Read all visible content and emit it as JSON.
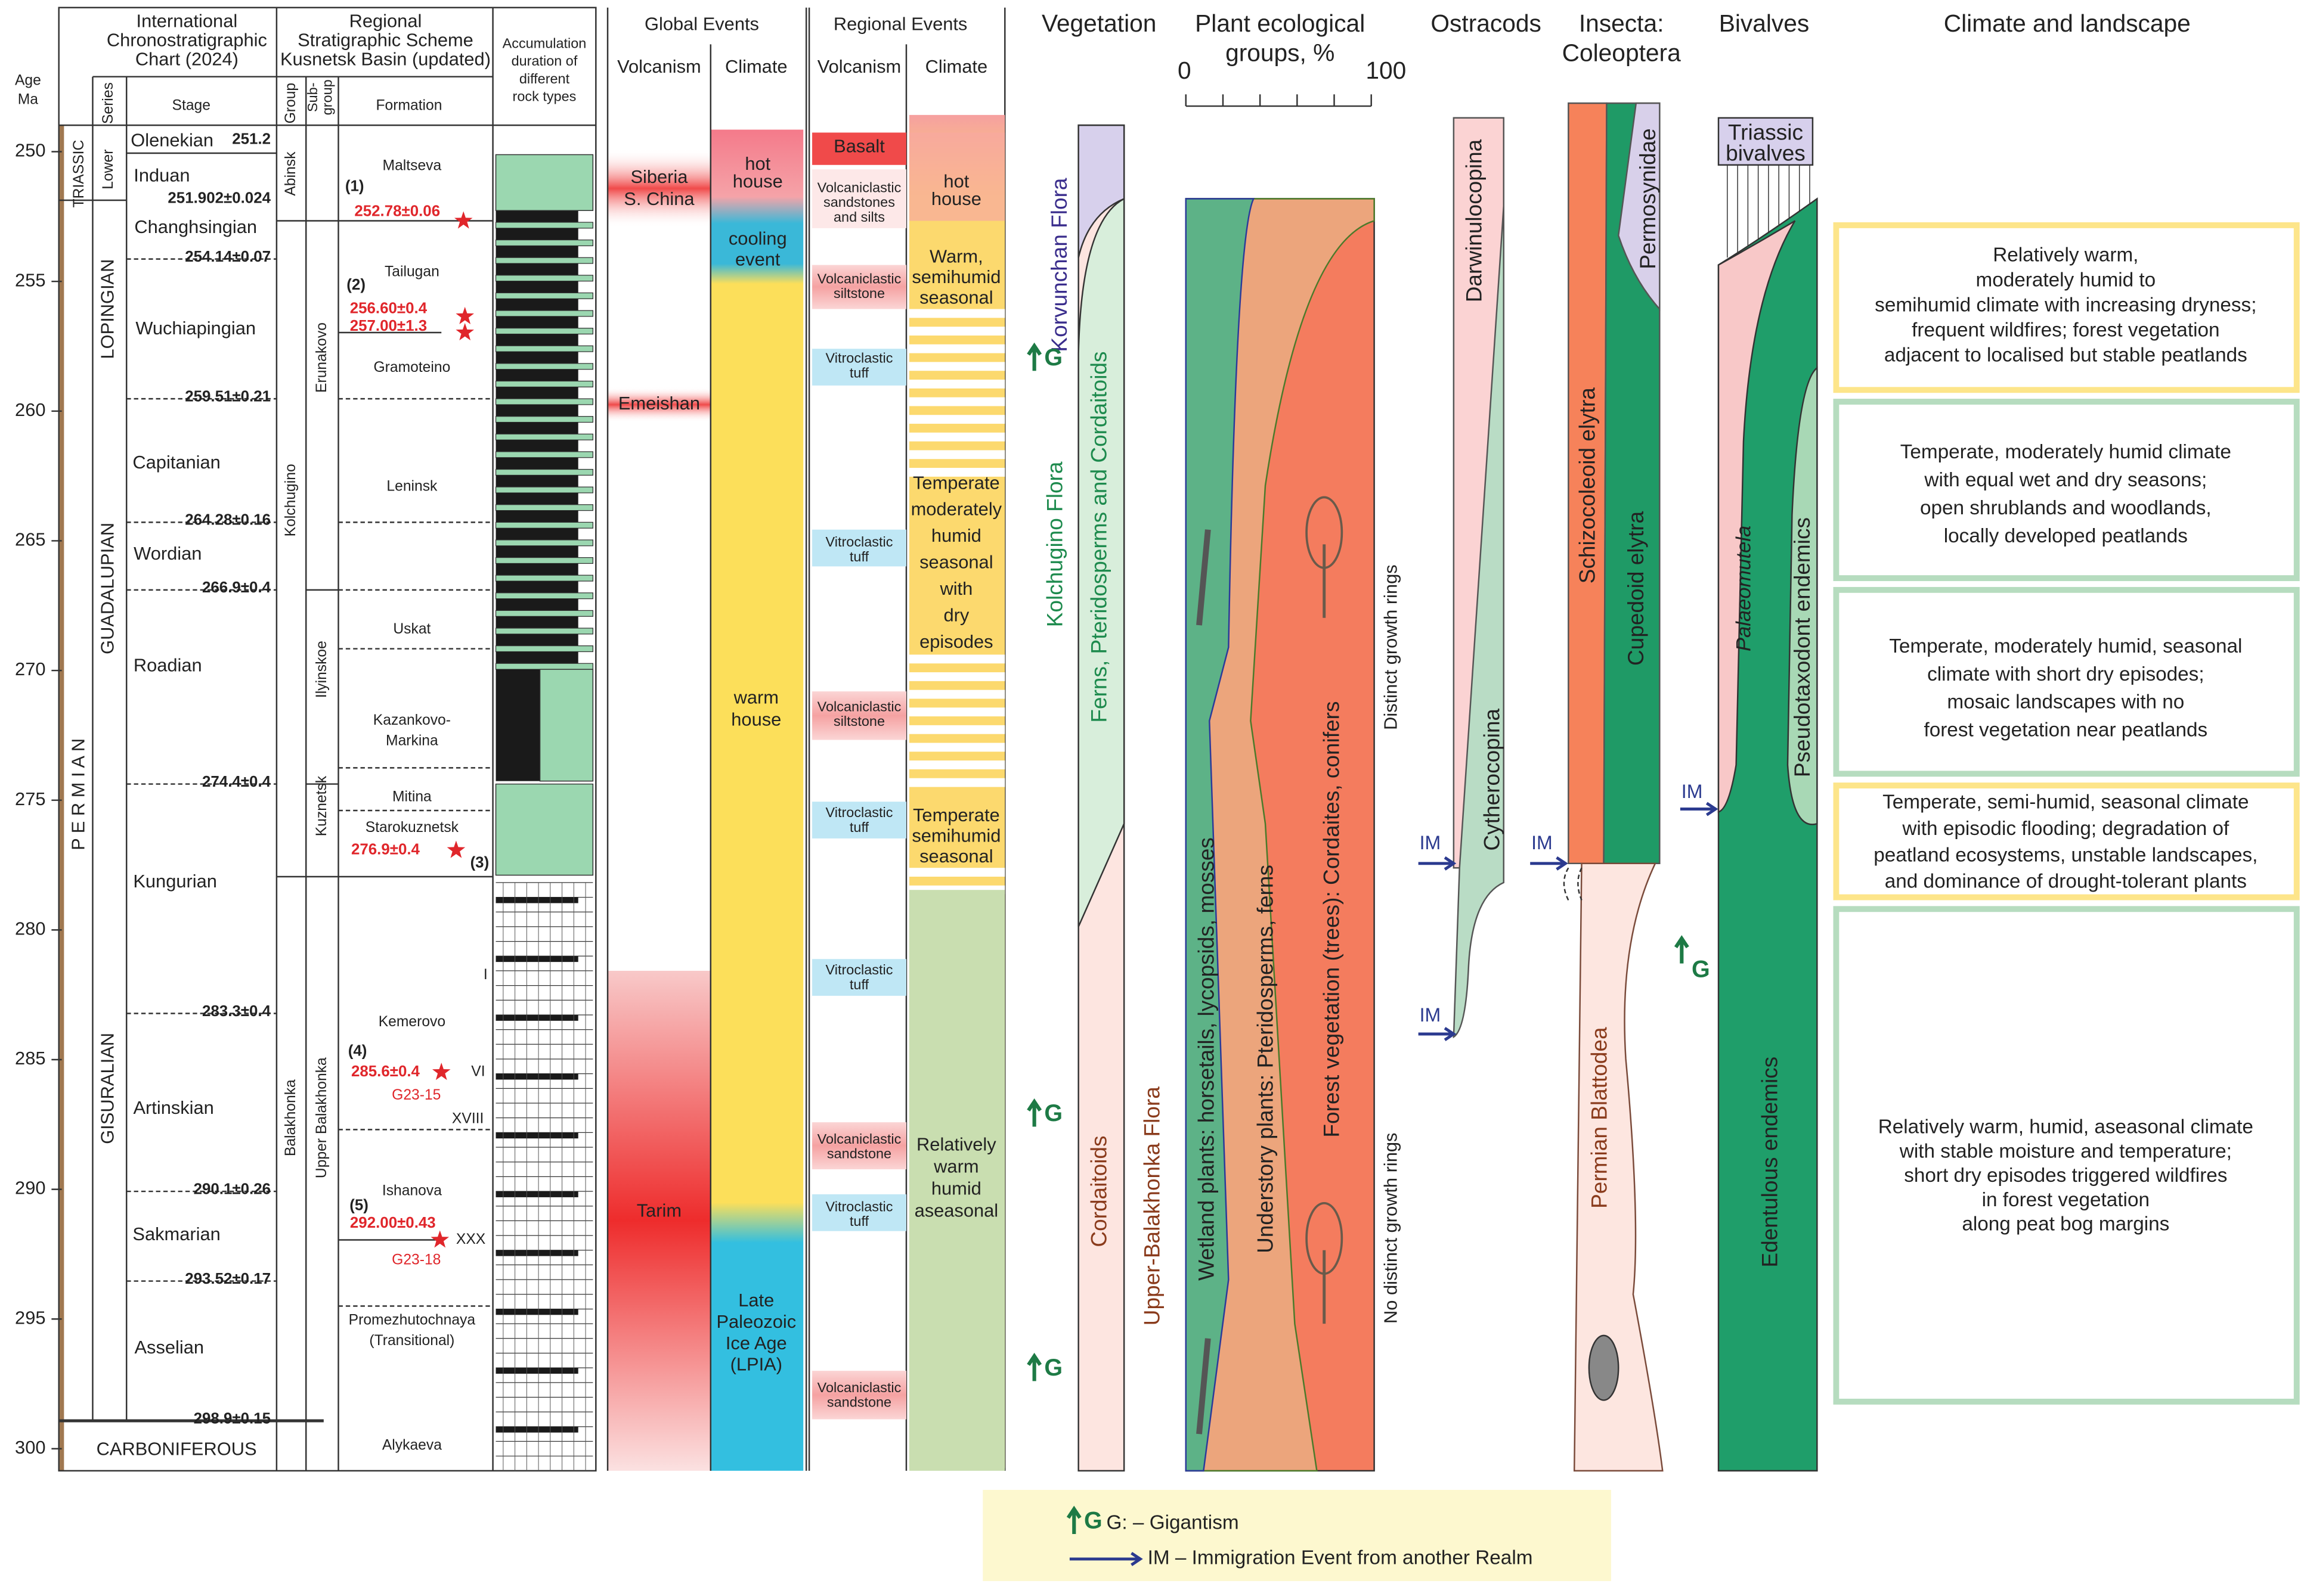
{
  "age_axis": {
    "title": [
      "Age",
      "Ma"
    ],
    "ticks": [
      250,
      255,
      260,
      265,
      270,
      275,
      280,
      285,
      290,
      295,
      300
    ]
  },
  "columns": {
    "ics": [
      "International",
      "Chronostratigraphic",
      "Chart (2024)"
    ],
    "regional": [
      "Regional",
      "Stratigraphic Scheme",
      "Kusnetsk Basin (updated)"
    ],
    "accumulation": [
      "Accumulation",
      "duration of",
      "different",
      "rock types"
    ],
    "series": "Series",
    "stage": "Stage",
    "group": "Group",
    "subgroup": [
      "Sub-",
      "group"
    ],
    "formation": "Formation",
    "global_events": "Global Events",
    "global_volcanism": "Volcanism",
    "global_climate": "Climate",
    "regional_events": "Regional Events",
    "regional_volcanism": "Volcanism",
    "regional_climate": "Climate",
    "vegetation": "Vegetation",
    "plant_groups": [
      "Plant ecological",
      "groups, %"
    ],
    "scale_min": "0",
    "scale_max": "100",
    "ostracods": "Ostracods",
    "insecta": [
      "Insecta:",
      "Coleoptera"
    ],
    "bivalves": "Bivalves",
    "climate_landscape": "Climate and landscape"
  },
  "systems": [
    "TRIASSIC",
    "P E R M I A N",
    "CARBONIFEROUS"
  ],
  "series": [
    "Lower",
    "LOPINGIAN",
    "GUADALUPIAN",
    "GISURALIAN"
  ],
  "stages": [
    "Olenekian",
    "Induan",
    "Changhsingian",
    "Wuchiapingian",
    "Capitanian",
    "Wordian",
    "Roadian",
    "Kungurian",
    "Artinskian",
    "Sakmarian",
    "Asselian"
  ],
  "boundaries": [
    "251.2",
    "251.902±0.024",
    "254.14±0.07",
    "259.51±0.21",
    "264.28±0.16",
    "266.9±0.4",
    "274.4±0.4",
    "283.3±0.4",
    "290.1±0.26",
    "293.52±0.17",
    "298.9±0.15"
  ],
  "groups": [
    "Abinsk",
    "Kolchugino",
    "Balakhonka"
  ],
  "subgroups": [
    "Erunakovo",
    "Ilyinskoe",
    "Kuznetsk",
    "Upper Balakhonka"
  ],
  "formations": [
    [
      "Maltseva"
    ],
    [
      "Tailugan"
    ],
    [
      "Gramoteino"
    ],
    [
      "Leninsk"
    ],
    [
      "Uskat"
    ],
    [
      "Kazankovo-",
      "Markina"
    ],
    [
      "Mitina"
    ],
    [
      "Starokuznetsk"
    ],
    [
      "Kemerovo"
    ],
    [
      "Ishanova"
    ],
    [
      "Promezhutochnaya",
      "(Transitional)"
    ],
    [
      "Alykaeva"
    ]
  ],
  "radiometric_dates": [
    "252.78±0.06",
    "256.60±0.4",
    "257.00±1.3",
    "276.9±0.4",
    "285.6±0.4",
    "292.00±0.43"
  ],
  "date_refs": [
    "(1)",
    "(2)",
    "(3)",
    "(4)",
    "(5)"
  ],
  "samples": [
    "G23-15",
    "G23-18"
  ],
  "coal_seams": [
    "I",
    "VI",
    "XVIII",
    "XXX"
  ],
  "global_volcanism": [
    [
      "Siberia",
      "S. China"
    ],
    [
      "Emeishan"
    ],
    [
      "Tarim"
    ]
  ],
  "global_climate": [
    [
      "hot",
      "house"
    ],
    [
      "cooling",
      "event"
    ],
    [
      "warm",
      "house"
    ],
    [
      "Late",
      "Paleozoic",
      "Ice Age",
      "(LPIA)"
    ]
  ],
  "regional_volcanism": [
    [
      "Basalt"
    ],
    [
      "Volcaniclastic",
      "sandstones",
      "and silts"
    ],
    [
      "Volcaniclastic",
      "siltstone"
    ],
    [
      "Vitroclastic",
      "tuff"
    ],
    [
      "Vitroclastic",
      "tuff"
    ],
    [
      "Volcaniclastic",
      "siltstone"
    ],
    [
      "Vitroclastic",
      "tuff"
    ],
    [
      "Vitroclastic",
      "tuff"
    ],
    [
      "Volcaniclastic",
      "sandstone"
    ],
    [
      "Vitroclastic",
      "tuff"
    ],
    [
      "Volcaniclastic",
      "sandstone"
    ]
  ],
  "regional_climate": [
    [
      "hot",
      "house"
    ],
    [
      "Warm,",
      "semihumid",
      "seasonal"
    ],
    [
      "Temperate",
      "moderately",
      "humid",
      "seasonal",
      "with",
      "dry",
      "episodes"
    ],
    [
      "Temperate",
      "semihumid",
      "seasonal"
    ],
    [
      "Relatively",
      "warm",
      "humid",
      "aseasonal"
    ]
  ],
  "vegetation": {
    "floras": [
      "Korvunchan Flora",
      "Kolchugino Flora",
      "Upper-Balakhonka Flora"
    ],
    "groups": [
      "Ferns, Pteridosperms and Cordaitoids",
      "Cordaitoids"
    ],
    "gigantism": [
      "G",
      "G",
      "G"
    ]
  },
  "plant_groups": {
    "labels": [
      "Wetland plants: horsetails, lycopsids, mosses",
      "Understory plants: Pteridosperms, ferns",
      "Forest vegetation (trees): Cordaites, conifers"
    ],
    "growth": [
      "Distinct growth rings",
      "No distinct growth rings"
    ]
  },
  "ostracods": {
    "taxa": [
      "Darwinulocopina",
      "Cytherocopina"
    ],
    "events": [
      "IM",
      "IM"
    ]
  },
  "insects": {
    "taxa": [
      "Schizocoleoid elytra",
      "Cupedoid elytra",
      "Permosynidae",
      "Permian Blattodea"
    ],
    "events": [
      "IM"
    ],
    "gigantism": [
      "G"
    ]
  },
  "bivalves": {
    "triassic": [
      "Triassic",
      "bivalves"
    ],
    "taxa": [
      "Palaeomutela",
      "Pseudotaxodont endemics",
      "Edentulous endemics"
    ],
    "events": [
      "IM"
    ]
  },
  "climate_boxes": [
    [
      "Relatively warm,",
      "moderately humid to",
      "semihumid climate with increasing dryness;",
      "frequent wildfires; forest vegetation",
      "adjacent to localised but stable peatlands"
    ],
    [
      "Temperate, moderately humid climate",
      "with equal wet and dry seasons;",
      "open shrublands and woodlands,",
      "locally developed peatlands"
    ],
    [
      "Temperate, moderately humid, seasonal",
      "climate with short dry episodes;",
      "mosaic landscapes with no",
      "forest vegetation near peatlands"
    ],
    [
      "Temperate, semi-humid, seasonal climate",
      "with episodic flooding; degradation of",
      "peatland ecosystems, unstable landscapes,",
      "and dominance of drought-tolerant plants"
    ],
    [
      "Relatively warm, humid, aseasonal climate",
      "with stable moisture and temperature;",
      "short dry episodes triggered wildfires",
      "in forest vegetation",
      "along peat bog margins"
    ]
  ],
  "legend": {
    "gigantism_symbol": "G",
    "gigantism": "G: – Gigantism",
    "immigration": "IM – Immigration Event from another Realm"
  }
}
